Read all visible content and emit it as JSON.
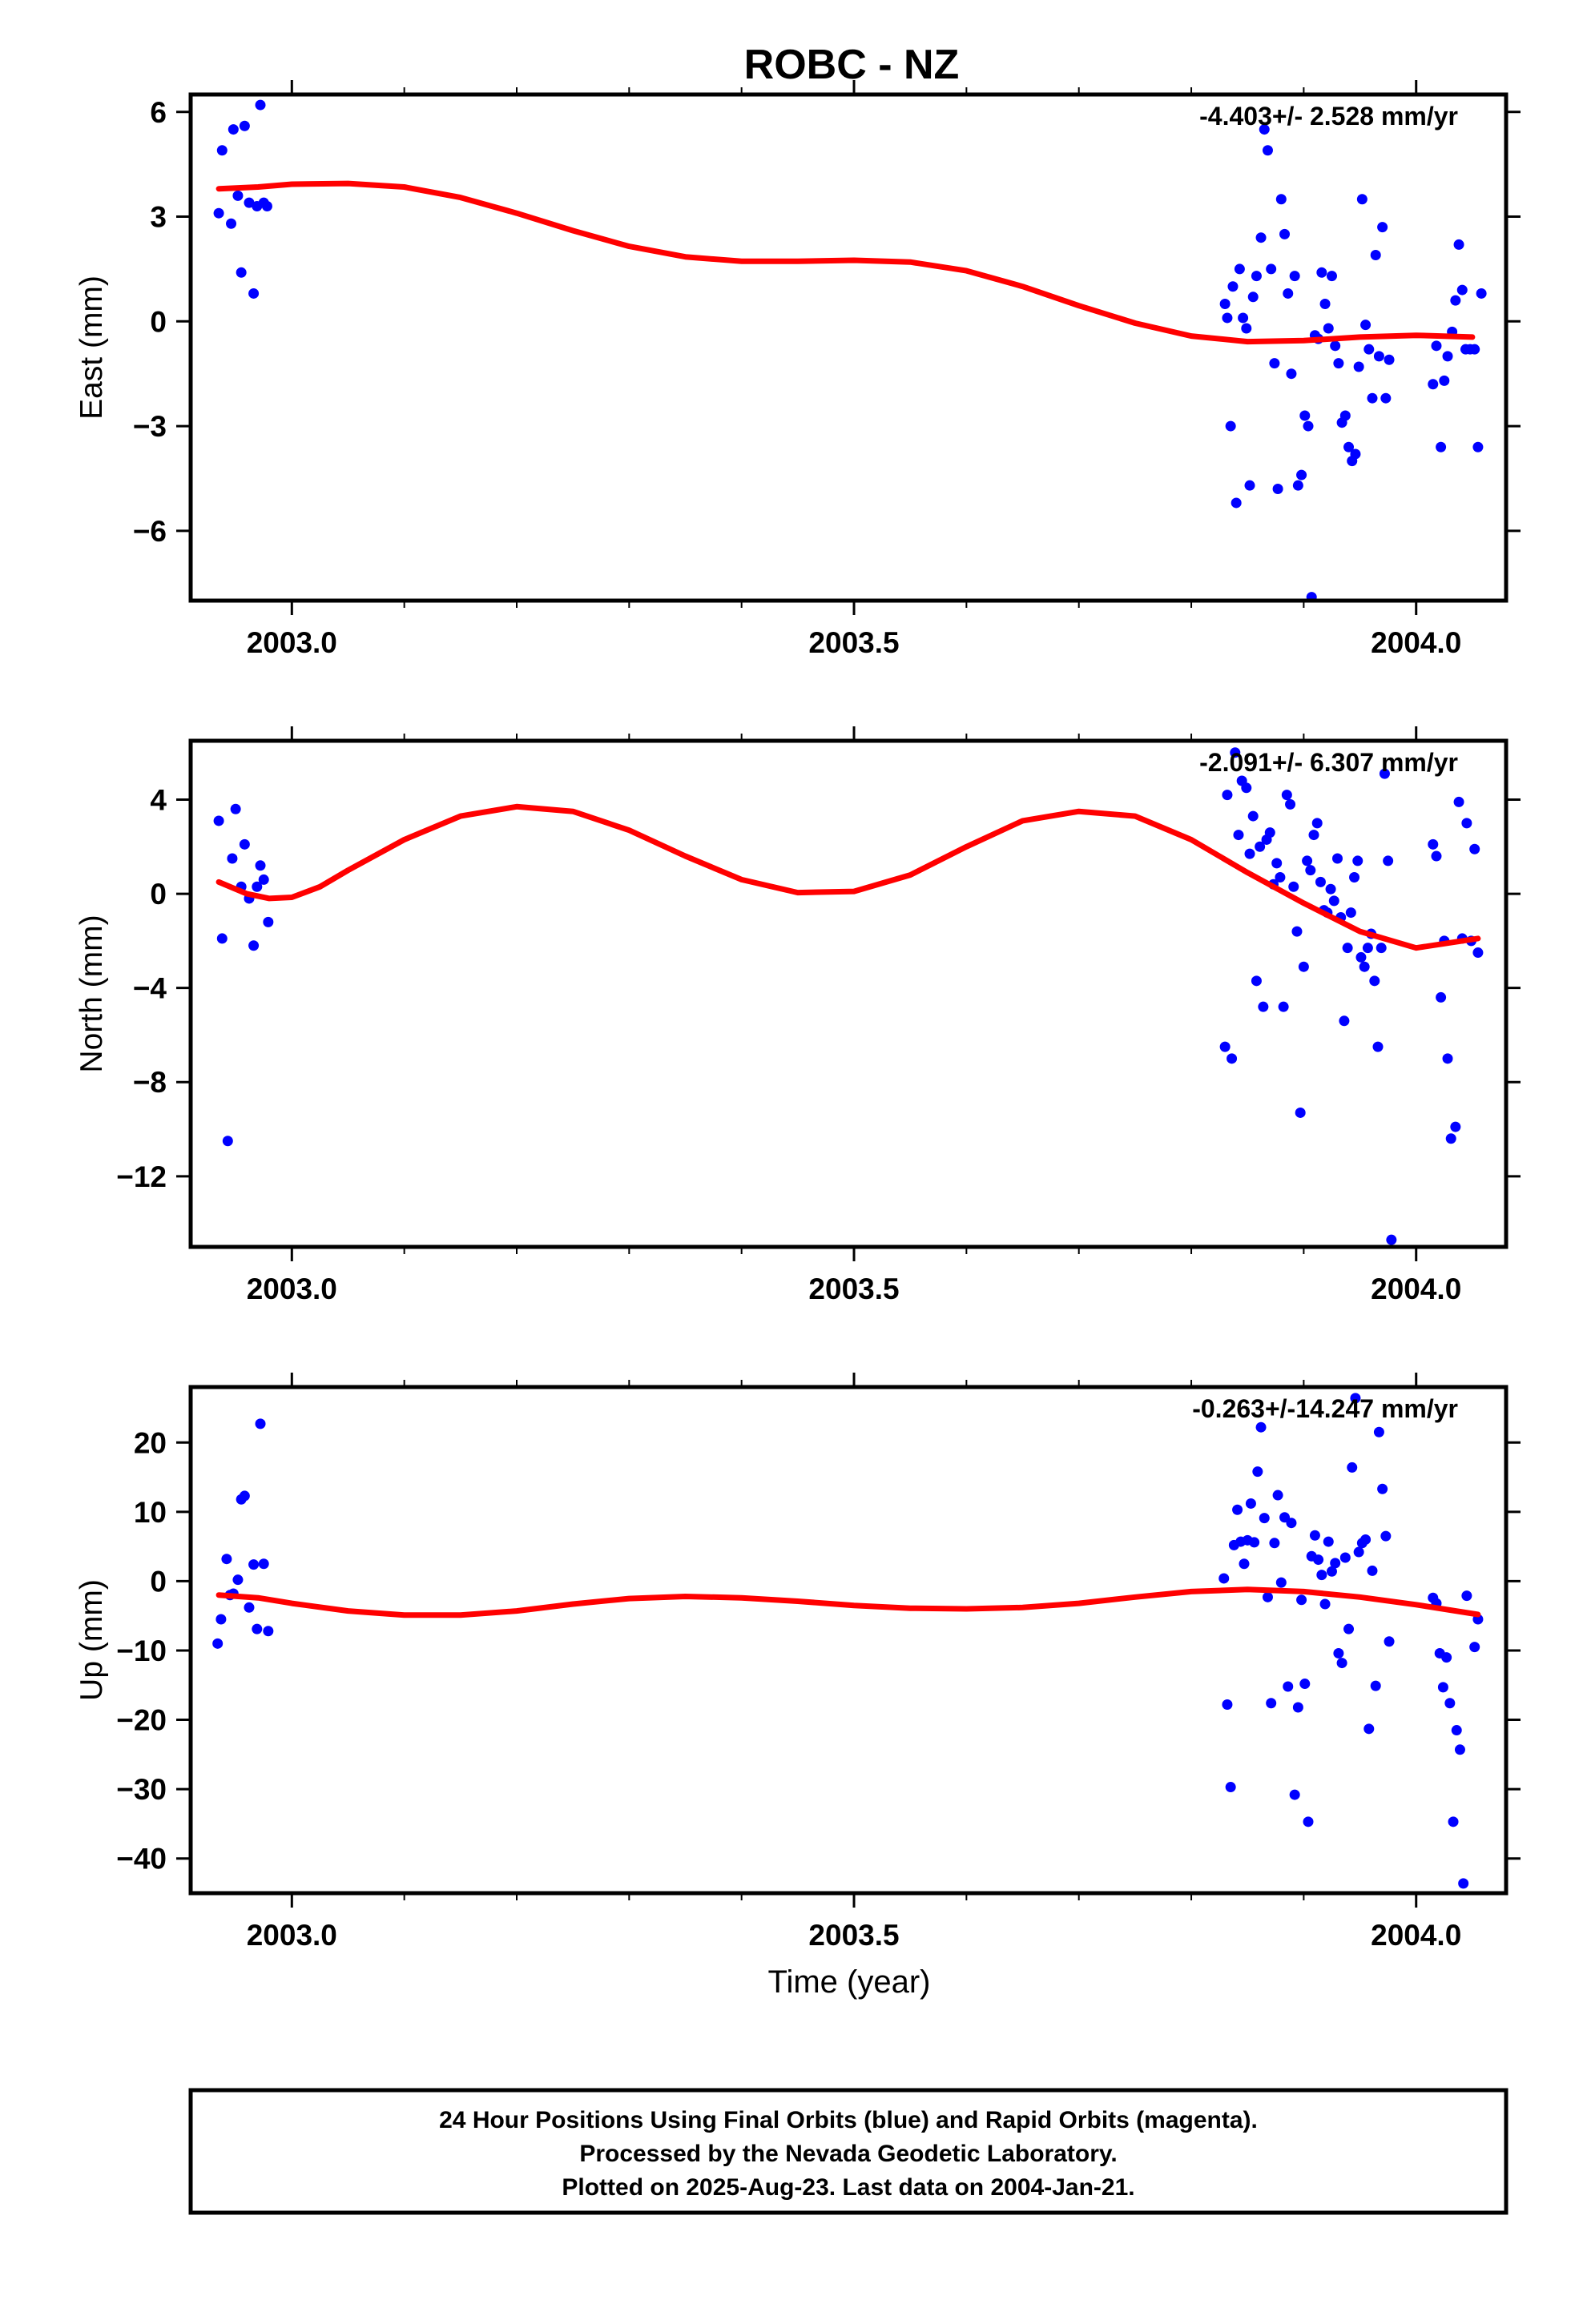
{
  "title": "ROBC - NZ",
  "x_axis_label": "Time (year)",
  "caption": [
    "24 Hour Positions Using Final Orbits (blue) and Rapid Orbits (magenta).",
    "Processed by the Nevada Geodetic Laboratory.",
    "Plotted on 2025-Aug-23. Last data on 2004-Jan-21."
  ],
  "colors": {
    "points": "#0000ff",
    "fit": "#ff0000",
    "frame": "#000000"
  },
  "chart_data": [
    {
      "type": "scatter",
      "name": "east",
      "ylabel": "East (mm)",
      "rate": "-4.403+/- 2.528 mm/yr",
      "xlim": [
        2002.91,
        2004.08
      ],
      "ylim": [
        -8.0,
        6.5
      ],
      "xticks": [
        2003.0,
        2003.5,
        2004.0
      ],
      "xtick_labels": [
        "2003.0",
        "2003.5",
        "2004.0"
      ],
      "yticks": [
        6,
        3,
        0,
        -3,
        -6
      ],
      "ytick_labels": [
        "6",
        "3",
        "0",
        "−3",
        "−6"
      ],
      "fit": {
        "x": [
          2002.935,
          2002.97,
          2003.0,
          2003.05,
          2003.1,
          2003.15,
          2003.2,
          2003.25,
          2003.3,
          2003.35,
          2003.4,
          2003.45,
          2003.5,
          2003.55,
          2003.6,
          2003.65,
          2003.7,
          2003.75,
          2003.8,
          2003.85,
          2003.9,
          2003.95,
          2004.0,
          2004.05
        ],
        "y": [
          3.8,
          3.85,
          3.93,
          3.95,
          3.85,
          3.55,
          3.1,
          2.6,
          2.15,
          1.85,
          1.72,
          1.72,
          1.75,
          1.7,
          1.45,
          1.0,
          0.45,
          -0.05,
          -0.42,
          -0.58,
          -0.55,
          -0.45,
          -0.4,
          -0.45
        ]
      },
      "points": {
        "x": [
          2002.935,
          2002.938,
          2002.946,
          2002.948,
          2002.952,
          2002.955,
          2002.958,
          2002.962,
          2002.966,
          2002.969,
          2002.972,
          2002.975,
          2002.978,
          2003.83,
          2003.832,
          2003.835,
          2003.837,
          2003.84,
          2003.843,
          2003.846,
          2003.849,
          2003.852,
          2003.855,
          2003.858,
          2003.862,
          2003.865,
          2003.868,
          2003.871,
          2003.874,
          2003.877,
          2003.88,
          2003.883,
          2003.886,
          2003.889,
          2003.892,
          2003.895,
          2003.898,
          2003.901,
          2003.904,
          2003.907,
          2003.91,
          2003.913,
          2003.916,
          2003.919,
          2003.922,
          2003.925,
          2003.928,
          2003.931,
          2003.934,
          2003.937,
          2003.94,
          2003.943,
          2003.946,
          2003.949,
          2003.952,
          2003.955,
          2003.958,
          2003.961,
          2003.964,
          2003.967,
          2003.97,
          2003.973,
          2003.976,
          2004.015,
          2004.018,
          2004.022,
          2004.025,
          2004.028,
          2004.032,
          2004.035,
          2004.038,
          2004.041,
          2004.044,
          2004.048,
          2004.052,
          2004.055,
          2004.058
        ],
        "y": [
          3.1,
          4.9,
          2.8,
          5.5,
          3.6,
          1.4,
          5.6,
          3.4,
          0.8,
          3.3,
          6.2,
          3.4,
          3.3,
          0.5,
          0.1,
          -3.0,
          1.0,
          -5.2,
          1.5,
          0.1,
          -0.2,
          -4.7,
          0.7,
          1.3,
          2.4,
          5.5,
          4.9,
          1.5,
          -1.2,
          -4.8,
          3.5,
          2.5,
          0.8,
          -1.5,
          1.3,
          -4.7,
          -4.4,
          -2.7,
          -3.0,
          -7.9,
          -0.4,
          -0.5,
          1.4,
          0.5,
          -0.2,
          1.3,
          -0.7,
          -1.2,
          -2.9,
          -2.7,
          -3.6,
          -4.0,
          -3.8,
          -1.3,
          3.5,
          -0.1,
          -0.8,
          -2.2,
          1.9,
          -1.0,
          2.7,
          -2.2,
          -1.1,
          -1.8,
          -0.7,
          -3.6,
          -1.7,
          -1.0,
          -0.3,
          0.6,
          2.2,
          0.9,
          -0.8,
          -0.8,
          -0.8,
          -3.6,
          0.8
        ]
      }
    },
    {
      "type": "scatter",
      "name": "north",
      "ylabel": "North (mm)",
      "rate": "-2.091+/- 6.307 mm/yr",
      "xlim": [
        2002.91,
        2004.08
      ],
      "ylim": [
        -15.0,
        6.5
      ],
      "xticks": [
        2003.0,
        2003.5,
        2004.0
      ],
      "xtick_labels": [
        "2003.0",
        "2003.5",
        "2004.0"
      ],
      "yticks": [
        4,
        0,
        -4,
        -8,
        -12
      ],
      "ytick_labels": [
        "4",
        "0",
        "−4",
        "−8",
        "−12"
      ],
      "fit": {
        "x": [
          2002.935,
          2002.96,
          2002.98,
          2003.0,
          2003.025,
          2003.05,
          2003.1,
          2003.15,
          2003.2,
          2003.25,
          2003.3,
          2003.35,
          2003.4,
          2003.45,
          2003.5,
          2003.55,
          2003.6,
          2003.65,
          2003.7,
          2003.75,
          2003.8,
          2003.85,
          2003.9,
          2003.95,
          2004.0,
          2004.055
        ],
        "y": [
          0.5,
          0.0,
          -0.2,
          -0.15,
          0.3,
          1.0,
          2.3,
          3.3,
          3.7,
          3.5,
          2.7,
          1.6,
          0.6,
          0.05,
          0.1,
          0.8,
          2.0,
          3.1,
          3.5,
          3.3,
          2.3,
          0.9,
          -0.4,
          -1.6,
          -2.3,
          -1.9
        ]
      },
      "points": {
        "x": [
          2002.935,
          2002.938,
          2002.943,
          2002.947,
          2002.95,
          2002.955,
          2002.958,
          2002.962,
          2002.966,
          2002.969,
          2002.972,
          2002.975,
          2002.979,
          2003.83,
          2003.832,
          2003.836,
          2003.839,
          2003.842,
          2003.845,
          2003.849,
          2003.852,
          2003.855,
          2003.858,
          2003.861,
          2003.864,
          2003.867,
          2003.87,
          2003.873,
          2003.876,
          2003.879,
          2003.882,
          2003.885,
          2003.888,
          2003.891,
          2003.894,
          2003.897,
          2003.9,
          2003.903,
          2003.906,
          2003.909,
          2003.912,
          2003.915,
          2003.918,
          2003.921,
          2003.924,
          2003.927,
          2003.93,
          2003.933,
          2003.936,
          2003.939,
          2003.942,
          2003.945,
          2003.948,
          2003.951,
          2003.954,
          2003.957,
          2003.96,
          2003.963,
          2003.966,
          2003.969,
          2003.972,
          2003.975,
          2003.978,
          2004.015,
          2004.018,
          2004.022,
          2004.025,
          2004.028,
          2004.031,
          2004.035,
          2004.038,
          2004.041,
          2004.045,
          2004.049,
          2004.052,
          2004.055
        ],
        "y": [
          3.1,
          -1.9,
          -10.5,
          1.5,
          3.6,
          0.3,
          2.1,
          -0.2,
          -2.2,
          0.3,
          1.2,
          0.6,
          -1.2,
          -6.5,
          4.2,
          -7.0,
          6.0,
          2.5,
          4.8,
          4.5,
          1.7,
          3.3,
          -3.7,
          2.0,
          -4.8,
          2.3,
          2.6,
          0.4,
          1.3,
          0.7,
          -4.8,
          4.2,
          3.8,
          0.3,
          -1.6,
          -9.3,
          -3.1,
          1.4,
          1.0,
          2.5,
          3.0,
          0.5,
          -0.7,
          -0.8,
          0.2,
          -0.3,
          1.5,
          -1.0,
          -5.4,
          -2.3,
          -0.8,
          0.7,
          1.4,
          -2.7,
          -3.1,
          -2.3,
          -1.7,
          -3.7,
          -6.5,
          -2.3,
          5.1,
          1.4,
          -14.7,
          2.1,
          1.6,
          -4.4,
          -2.0,
          -7.0,
          -10.4,
          -9.9,
          3.9,
          -1.9,
          3.0,
          -2.0,
          1.9,
          -2.5
        ]
      }
    },
    {
      "type": "scatter",
      "name": "up",
      "ylabel": "Up (mm)",
      "rate": "-0.263+/-14.247 mm/yr",
      "xlim": [
        2002.91,
        2004.08
      ],
      "ylim": [
        -45.0,
        28.0
      ],
      "xticks": [
        2003.0,
        2003.5,
        2004.0
      ],
      "xtick_labels": [
        "2003.0",
        "2003.5",
        "2004.0"
      ],
      "yticks": [
        20,
        10,
        0,
        -10,
        -20,
        -30,
        -40
      ],
      "ytick_labels": [
        "20",
        "10",
        "0",
        "−10",
        "−20",
        "−30",
        "−40"
      ],
      "fit": {
        "x": [
          2002.935,
          2002.97,
          2003.0,
          2003.05,
          2003.1,
          2003.15,
          2003.2,
          2003.25,
          2003.3,
          2003.35,
          2003.4,
          2003.45,
          2003.5,
          2003.55,
          2003.6,
          2003.65,
          2003.7,
          2003.75,
          2003.8,
          2003.85,
          2003.9,
          2003.95,
          2004.0,
          2004.055
        ],
        "y": [
          -2.0,
          -2.4,
          -3.2,
          -4.3,
          -4.9,
          -4.9,
          -4.3,
          -3.3,
          -2.5,
          -2.2,
          -2.4,
          -2.9,
          -3.5,
          -3.9,
          -4.0,
          -3.8,
          -3.2,
          -2.3,
          -1.5,
          -1.2,
          -1.5,
          -2.3,
          -3.4,
          -4.8
        ]
      },
      "points": {
        "x": [
          2002.934,
          2002.937,
          2002.942,
          2002.945,
          2002.948,
          2002.952,
          2002.955,
          2002.958,
          2002.962,
          2002.966,
          2002.969,
          2002.972,
          2002.975,
          2002.979,
          2003.829,
          2003.832,
          2003.835,
          2003.838,
          2003.841,
          2003.844,
          2003.847,
          2003.85,
          2003.853,
          2003.856,
          2003.859,
          2003.862,
          2003.865,
          2003.868,
          2003.871,
          2003.874,
          2003.877,
          2003.88,
          2003.883,
          2003.886,
          2003.889,
          2003.892,
          2003.895,
          2003.898,
          2003.901,
          2003.904,
          2003.907,
          2003.91,
          2003.913,
          2003.916,
          2003.919,
          2003.922,
          2003.925,
          2003.928,
          2003.931,
          2003.934,
          2003.937,
          2003.94,
          2003.943,
          2003.946,
          2003.949,
          2003.952,
          2003.955,
          2003.958,
          2003.961,
          2003.964,
          2003.967,
          2003.97,
          2003.973,
          2003.976,
          2004.015,
          2004.018,
          2004.021,
          2004.024,
          2004.027,
          2004.03,
          2004.033,
          2004.036,
          2004.039,
          2004.042,
          2004.045,
          2004.052,
          2004.055
        ],
        "y": [
          -9.0,
          -5.5,
          3.2,
          -2.0,
          -1.8,
          0.2,
          11.8,
          12.3,
          -3.8,
          2.4,
          -6.9,
          22.7,
          2.5,
          -7.2,
          0.4,
          -17.8,
          -29.7,
          5.2,
          10.3,
          5.7,
          2.5,
          5.9,
          11.2,
          5.6,
          15.8,
          22.2,
          9.1,
          -2.3,
          -17.6,
          5.5,
          12.4,
          -0.2,
          9.2,
          -15.2,
          8.4,
          -30.8,
          -18.2,
          -2.7,
          -14.8,
          -34.7,
          3.6,
          6.6,
          3.1,
          0.9,
          -3.3,
          5.7,
          1.4,
          2.6,
          -10.4,
          -11.8,
          3.4,
          -6.9,
          16.4,
          26.4,
          4.2,
          5.5,
          6.0,
          -21.3,
          1.5,
          -15.1,
          21.5,
          13.3,
          6.5,
          -8.7,
          -2.4,
          -3.2,
          -10.4,
          -15.3,
          -11.0,
          -17.6,
          -34.7,
          -21.5,
          -24.3,
          -43.6,
          -2.1,
          -9.5,
          -5.5
        ]
      }
    }
  ]
}
